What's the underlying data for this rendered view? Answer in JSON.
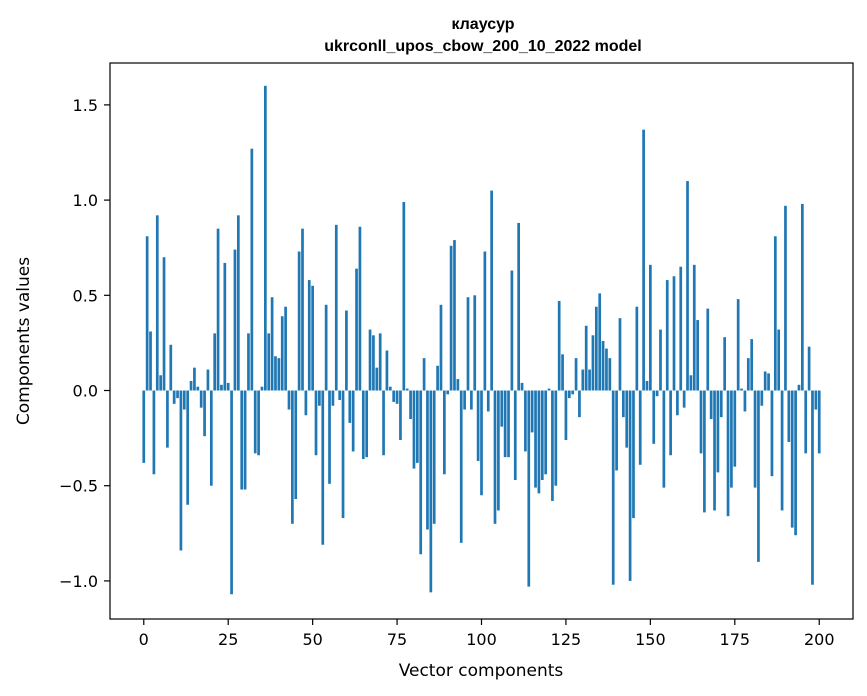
{
  "chart_data": {
    "type": "bar",
    "title": "клаусур",
    "subtitle": "ukrconll_upos_cbow_200_10_2022 model",
    "xlabel": "Vector components",
    "ylabel": "Components values",
    "xlim": [
      -10,
      210
    ],
    "ylim": [
      -1.2,
      1.72
    ],
    "xticks": [
      0,
      25,
      50,
      75,
      100,
      125,
      150,
      175,
      200
    ],
    "xtick_labels": [
      "0",
      "25",
      "50",
      "75",
      "100",
      "125",
      "150",
      "175",
      "200"
    ],
    "yticks": [
      -1.0,
      -0.5,
      0.0,
      0.5,
      1.0,
      1.5
    ],
    "ytick_labels": [
      "−1.0",
      "−0.5",
      "0.0",
      "0.5",
      "1.0",
      "1.5"
    ],
    "bar_color": "#1f77b4",
    "values": [
      -0.38,
      0.81,
      0.31,
      -0.44,
      0.92,
      0.08,
      0.7,
      -0.3,
      0.24,
      -0.07,
      -0.04,
      -0.84,
      -0.1,
      -0.6,
      0.05,
      0.12,
      0.02,
      -0.09,
      -0.24,
      0.11,
      -0.5,
      0.3,
      0.85,
      0.03,
      0.67,
      0.04,
      -1.07,
      0.74,
      0.92,
      -0.52,
      -0.52,
      0.3,
      1.27,
      -0.33,
      -0.34,
      0.02,
      1.6,
      0.3,
      0.49,
      0.18,
      0.17,
      0.39,
      0.44,
      -0.1,
      -0.7,
      -0.57,
      0.73,
      0.85,
      -0.13,
      0.58,
      0.55,
      -0.34,
      -0.08,
      -0.81,
      0.45,
      -0.49,
      -0.08,
      0.87,
      -0.05,
      -0.67,
      0.42,
      -0.17,
      -0.32,
      0.64,
      0.86,
      -0.36,
      -0.35,
      0.32,
      0.29,
      0.12,
      0.3,
      -0.34,
      0.21,
      0.02,
      -0.06,
      -0.07,
      -0.26,
      0.99,
      0.01,
      -0.15,
      -0.41,
      -0.38,
      -0.86,
      0.17,
      -0.73,
      -1.06,
      -0.7,
      0.13,
      0.45,
      -0.44,
      -0.02,
      0.76,
      0.79,
      0.06,
      -0.8,
      -0.1,
      0.49,
      -0.1,
      0.5,
      -0.37,
      -0.55,
      0.73,
      -0.11,
      1.05,
      -0.7,
      -0.63,
      -0.19,
      -0.35,
      -0.35,
      0.63,
      -0.47,
      0.88,
      0.04,
      -0.32,
      -1.03,
      -0.22,
      -0.51,
      -0.54,
      -0.47,
      -0.44,
      0.01,
      -0.58,
      -0.5,
      0.47,
      0.19,
      -0.26,
      -0.04,
      -0.02,
      0.17,
      -0.14,
      0.11,
      0.34,
      0.11,
      0.29,
      0.44,
      0.51,
      0.26,
      0.22,
      0.17,
      -1.02,
      -0.42,
      0.38,
      -0.14,
      -0.3,
      -1.0,
      -0.67,
      0.44,
      -0.39,
      1.37,
      0.05,
      0.66,
      -0.28,
      -0.03,
      0.32,
      -0.51,
      0.58,
      -0.34,
      0.6,
      -0.13,
      0.65,
      -0.09,
      1.1,
      0.08,
      0.66,
      0.37,
      -0.33,
      -0.64,
      0.43,
      -0.15,
      -0.63,
      -0.43,
      -0.14,
      0.28,
      -0.66,
      -0.51,
      -0.4,
      0.48,
      0.01,
      -0.11,
      0.17,
      0.27,
      -0.51,
      -0.9,
      -0.08,
      0.1,
      0.09,
      -0.45,
      0.81,
      0.32,
      -0.63,
      0.97,
      -0.27,
      -0.72,
      -0.76,
      0.03,
      0.98,
      -0.33,
      0.23,
      -1.02,
      -0.1,
      -0.33
    ]
  }
}
